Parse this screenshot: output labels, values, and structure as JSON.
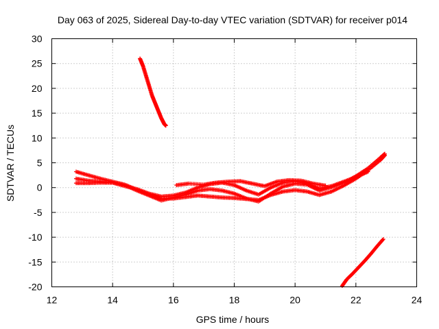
{
  "chart_data": {
    "type": "scatter",
    "title": "Day 063 of 2025, Sidereal Day-to-day VTEC variation (SDTVAR) for receiver p014",
    "xlabel": "GPS time / hours",
    "ylabel": "SDTVAR / TECUs",
    "xlim": [
      12,
      24
    ],
    "ylim": [
      -20,
      30
    ],
    "xticks": [
      "12",
      "14",
      "16",
      "18",
      "20",
      "22",
      "24"
    ],
    "yticks": [
      "-20",
      "-15",
      "-10",
      "-5",
      "0",
      "5",
      "10",
      "15",
      "20",
      "25",
      "30"
    ],
    "grid": true,
    "marker_color": "#ff0000",
    "marker": "plus",
    "series": [
      {
        "values": [
          [
            14.9,
            26
          ],
          [
            15.0,
            24.5
          ],
          [
            15.1,
            22.5
          ],
          [
            15.2,
            20.5
          ],
          [
            15.3,
            18.5
          ],
          [
            15.4,
            17
          ],
          [
            15.5,
            15.5
          ],
          [
            15.6,
            14
          ],
          [
            15.7,
            12.8
          ],
          [
            15.75,
            12.5
          ]
        ]
      },
      {
        "values": [
          [
            21.55,
            -19.8
          ],
          [
            21.7,
            -18.5
          ],
          [
            21.9,
            -17.3
          ],
          [
            22.1,
            -16
          ],
          [
            22.3,
            -14.7
          ],
          [
            22.5,
            -13.3
          ],
          [
            22.7,
            -11.8
          ],
          [
            22.9,
            -10.4
          ]
        ]
      },
      {
        "values": [
          [
            12.8,
            3.2
          ],
          [
            13.2,
            2.5
          ],
          [
            13.6,
            1.8
          ],
          [
            14.0,
            1.2
          ],
          [
            14.4,
            0.6
          ],
          [
            14.8,
            -0.4
          ],
          [
            15.2,
            -1.4
          ],
          [
            15.6,
            -2.2
          ],
          [
            16.0,
            -2.2
          ],
          [
            16.4,
            -1.9
          ],
          [
            16.8,
            -1.6
          ],
          [
            17.2,
            -1.8
          ],
          [
            17.6,
            -2.0
          ],
          [
            18.0,
            -2.1
          ],
          [
            18.4,
            -2.3
          ],
          [
            18.8,
            -2.5
          ],
          [
            19.2,
            -1.5
          ],
          [
            19.6,
            -0.8
          ],
          [
            20.0,
            -0.5
          ],
          [
            20.4,
            -0.8
          ],
          [
            20.8,
            -1.5
          ],
          [
            21.2,
            -0.8
          ],
          [
            21.6,
            0.4
          ],
          [
            22.0,
            1.8
          ],
          [
            22.4,
            3.5
          ],
          [
            22.8,
            5.5
          ],
          [
            22.95,
            6.5
          ]
        ]
      },
      {
        "values": [
          [
            12.8,
            1.8
          ],
          [
            13.2,
            1.4
          ],
          [
            13.6,
            1.2
          ],
          [
            14.0,
            1.0
          ],
          [
            14.4,
            0.5
          ],
          [
            14.8,
            -0.6
          ],
          [
            15.2,
            -1.6
          ],
          [
            15.6,
            -2.6
          ],
          [
            16.0,
            -2.0
          ],
          [
            16.4,
            -1.4
          ],
          [
            16.8,
            -0.6
          ],
          [
            17.2,
            -0.3
          ],
          [
            17.6,
            -0.6
          ],
          [
            18.0,
            -1.2
          ],
          [
            18.4,
            -2.2
          ],
          [
            18.8,
            -2.8
          ],
          [
            19.2,
            -1.2
          ],
          [
            19.6,
            0.2
          ],
          [
            20.0,
            0.8
          ],
          [
            20.4,
            0.6
          ],
          [
            20.8,
            -0.6
          ],
          [
            21.2,
            0.1
          ],
          [
            21.6,
            1.0
          ],
          [
            22.0,
            2.3
          ],
          [
            22.4,
            3.9
          ],
          [
            22.8,
            6.0
          ],
          [
            22.95,
            6.8
          ]
        ]
      },
      {
        "values": [
          [
            12.8,
            0.9
          ],
          [
            13.2,
            0.9
          ],
          [
            13.6,
            1.0
          ],
          [
            14.0,
            1.0
          ],
          [
            14.4,
            0.3
          ],
          [
            14.8,
            -0.3
          ],
          [
            15.2,
            -1.2
          ],
          [
            15.6,
            -1.8
          ],
          [
            16.0,
            -1.6
          ],
          [
            16.4,
            -1.0
          ],
          [
            16.8,
            0.0
          ],
          [
            17.2,
            0.7
          ],
          [
            17.6,
            1.0
          ],
          [
            18.0,
            0.5
          ],
          [
            18.4,
            -0.6
          ],
          [
            18.8,
            -1.4
          ],
          [
            19.2,
            0.0
          ],
          [
            19.6,
            1.0
          ],
          [
            20.0,
            1.3
          ],
          [
            20.4,
            0.8
          ],
          [
            20.8,
            -0.2
          ],
          [
            21.2,
            0.3
          ],
          [
            21.6,
            1.2
          ],
          [
            22.0,
            2.1
          ],
          [
            22.4,
            3.2
          ]
        ]
      },
      {
        "values": [
          [
            16.1,
            0.5
          ],
          [
            16.5,
            0.8
          ],
          [
            17.0,
            0.6
          ],
          [
            17.4,
            1.0
          ],
          [
            17.8,
            1.2
          ],
          [
            18.2,
            1.3
          ],
          [
            18.6,
            0.8
          ],
          [
            19.0,
            0.3
          ],
          [
            19.4,
            1.2
          ],
          [
            19.8,
            1.5
          ],
          [
            20.2,
            1.4
          ],
          [
            20.6,
            0.8
          ],
          [
            21.0,
            0.4
          ]
        ]
      }
    ]
  }
}
